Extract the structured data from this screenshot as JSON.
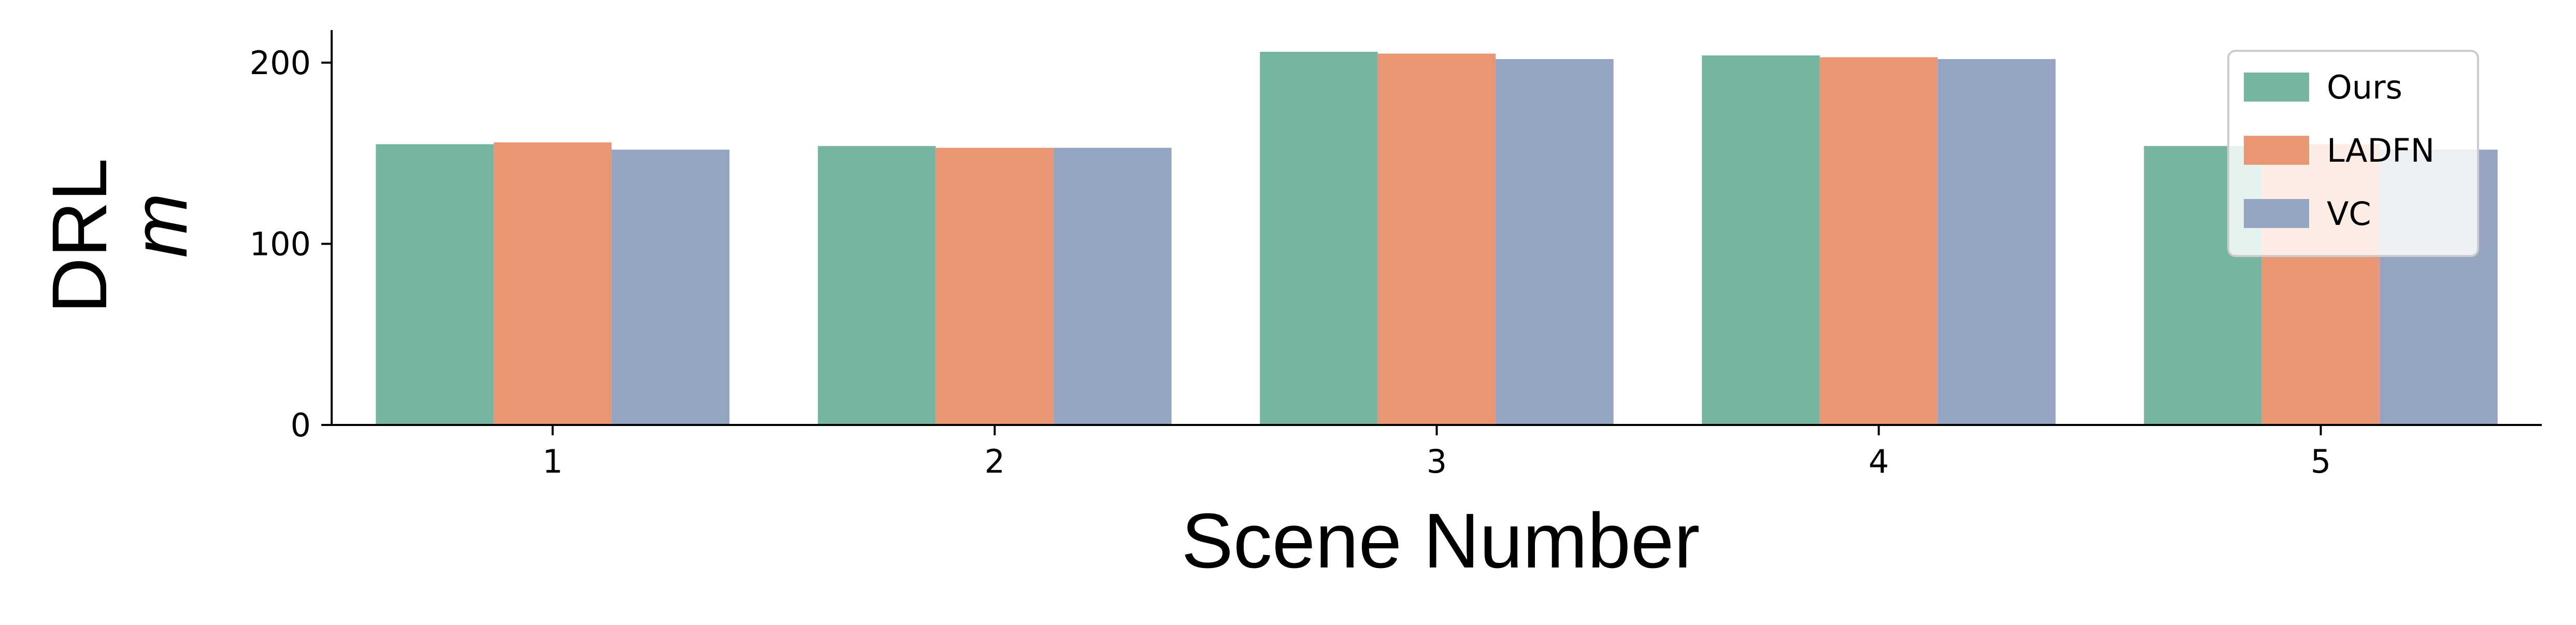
{
  "chart_data": {
    "type": "bar",
    "xlabel": "Scene Number",
    "ylabel_line1": "DRL",
    "ylabel_line2": "m",
    "categories": [
      "1",
      "2",
      "3",
      "4",
      "5"
    ],
    "series": [
      {
        "name": "Ours",
        "color": "#76b5a1",
        "values": [
          155,
          154,
          206,
          204,
          154
        ]
      },
      {
        "name": "LADFN",
        "color": "#e99675",
        "values": [
          156,
          153,
          205,
          203,
          155
        ]
      },
      {
        "name": "VC",
        "color": "#95a4c2",
        "values": [
          152,
          153,
          202,
          202,
          152
        ]
      }
    ],
    "ylim": [
      0,
      218
    ],
    "yticks": [
      0,
      100,
      200
    ],
    "grid": false,
    "legend_position": "top-right"
  }
}
